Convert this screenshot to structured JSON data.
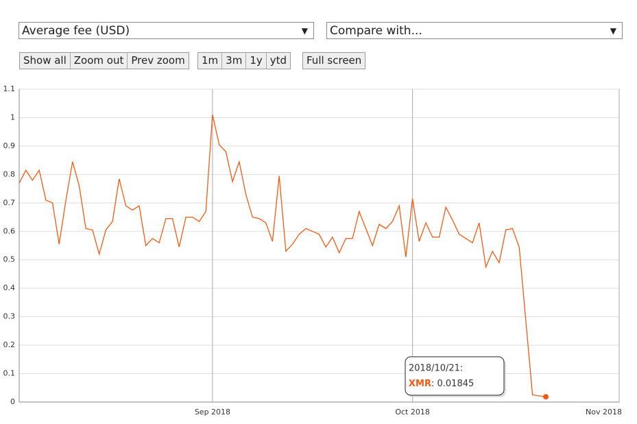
{
  "controls": {
    "selects": [
      "Average fee (USD)",
      "Compare with..."
    ],
    "button_groups": [
      [
        "Show all",
        "Zoom out",
        "Prev zoom"
      ],
      [
        "1m",
        "3m",
        "1y",
        "ytd"
      ],
      [
        "Full screen"
      ]
    ]
  },
  "chart_data": {
    "type": "line",
    "x": [
      "2018/08/03",
      "2018/08/04",
      "2018/08/05",
      "2018/08/06",
      "2018/08/07",
      "2018/08/08",
      "2018/08/09",
      "2018/08/10",
      "2018/08/11",
      "2018/08/12",
      "2018/08/13",
      "2018/08/14",
      "2018/08/15",
      "2018/08/16",
      "2018/08/17",
      "2018/08/18",
      "2018/08/19",
      "2018/08/20",
      "2018/08/21",
      "2018/08/22",
      "2018/08/23",
      "2018/08/24",
      "2018/08/25",
      "2018/08/26",
      "2018/08/27",
      "2018/08/28",
      "2018/08/29",
      "2018/08/30",
      "2018/08/31",
      "2018/09/01",
      "2018/09/02",
      "2018/09/03",
      "2018/09/04",
      "2018/09/05",
      "2018/09/06",
      "2018/09/07",
      "2018/09/08",
      "2018/09/09",
      "2018/09/10",
      "2018/09/11",
      "2018/09/12",
      "2018/09/13",
      "2018/09/14",
      "2018/09/15",
      "2018/09/16",
      "2018/09/17",
      "2018/09/18",
      "2018/09/19",
      "2018/09/20",
      "2018/09/21",
      "2018/09/22",
      "2018/09/23",
      "2018/09/24",
      "2018/09/25",
      "2018/09/26",
      "2018/09/27",
      "2018/09/28",
      "2018/09/29",
      "2018/09/30",
      "2018/10/01",
      "2018/10/02",
      "2018/10/03",
      "2018/10/04",
      "2018/10/05",
      "2018/10/06",
      "2018/10/07",
      "2018/10/08",
      "2018/10/09",
      "2018/10/10",
      "2018/10/11",
      "2018/10/12",
      "2018/10/13",
      "2018/10/14",
      "2018/10/15",
      "2018/10/16",
      "2018/10/17",
      "2018/10/19",
      "2018/10/21"
    ],
    "series": [
      {
        "name": "XMR",
        "color": "#f05a14",
        "values": [
          0.77,
          0.815,
          0.78,
          0.815,
          0.71,
          0.7,
          0.555,
          0.71,
          0.845,
          0.76,
          0.61,
          0.605,
          0.52,
          0.605,
          0.635,
          0.785,
          0.69,
          0.675,
          0.69,
          0.55,
          0.575,
          0.56,
          0.645,
          0.645,
          0.545,
          0.65,
          0.65,
          0.635,
          0.67,
          1.01,
          0.905,
          0.88,
          0.775,
          0.845,
          0.73,
          0.65,
          0.645,
          0.63,
          0.565,
          0.795,
          0.53,
          0.555,
          0.59,
          0.61,
          0.6,
          0.59,
          0.545,
          0.58,
          0.525,
          0.575,
          0.575,
          0.67,
          0.61,
          0.55,
          0.625,
          0.61,
          0.635,
          0.69,
          0.51,
          0.715,
          0.565,
          0.63,
          0.58,
          0.58,
          0.685,
          0.64,
          0.59,
          0.575,
          0.56,
          0.63,
          0.475,
          0.53,
          0.49,
          0.605,
          0.61,
          0.545,
          0.025,
          0.01845
        ]
      }
    ],
    "xlim": [
      "2018/08/03",
      "2018/11/01"
    ],
    "xticks": [
      {
        "value": "2018/09/01",
        "label": "Sep 2018"
      },
      {
        "value": "2018/10/01",
        "label": "Oct 2018"
      },
      {
        "value": "2018/11/01",
        "label": "Nov 2018"
      }
    ],
    "ylim": [
      0,
      1.1
    ],
    "yticks": [
      0,
      0.1,
      0.2,
      0.3,
      0.4,
      0.5,
      0.6,
      0.7,
      0.8,
      0.9,
      1,
      1.1
    ],
    "grid": true,
    "tooltip": {
      "title": "2018/10/21:",
      "value_label": ": 0.01845"
    }
  }
}
